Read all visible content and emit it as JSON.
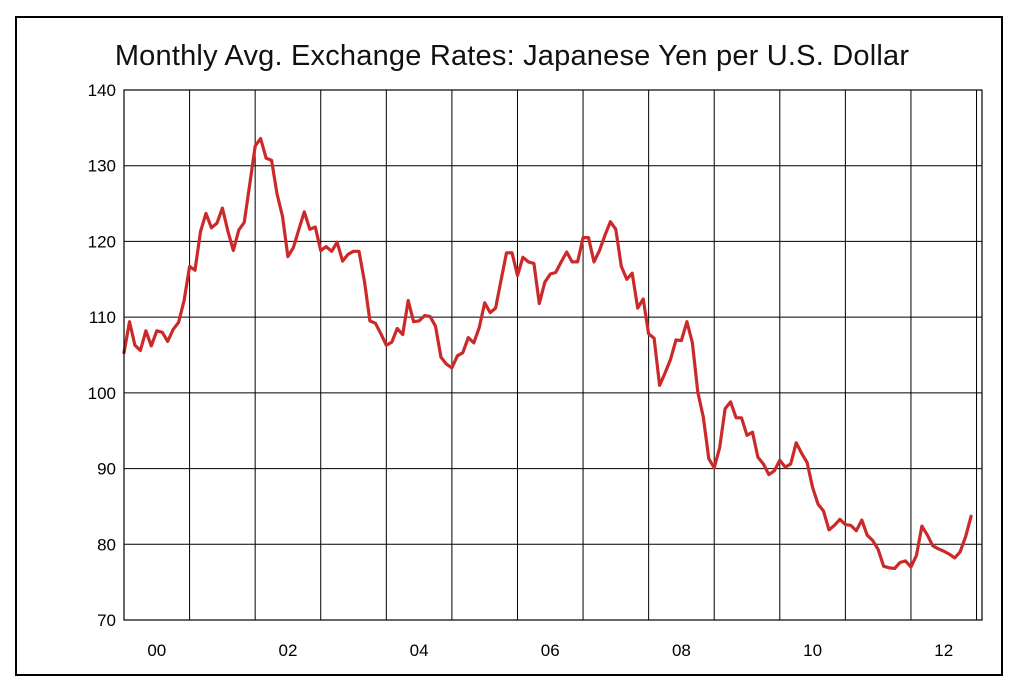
{
  "chart_data": {
    "type": "line",
    "title": "Monthly Avg. Exchange Rates: Japanese Yen per U.S. Dollar",
    "xlabel": "",
    "ylabel": "",
    "ylim": [
      70,
      140
    ],
    "y_ticks": [
      140,
      130,
      120,
      110,
      100,
      90,
      80,
      70
    ],
    "x_tick_labels": [
      "00",
      "02",
      "04",
      "06",
      "08",
      "10",
      "12"
    ],
    "x_tick_years": [
      2000,
      2002,
      2004,
      2006,
      2008,
      2010,
      2012
    ],
    "xlim": [
      "2000-01",
      "2013-02"
    ],
    "grid": true,
    "colors": {
      "line": "#cc2a2a",
      "grid": "#000000"
    },
    "series": [
      {
        "values": [
          [
            "2000-01",
            105.3
          ],
          [
            "2000-02",
            109.4
          ],
          [
            "2000-03",
            106.3
          ],
          [
            "2000-04",
            105.6
          ],
          [
            "2000-05",
            108.2
          ],
          [
            "2000-06",
            106.2
          ],
          [
            "2000-07",
            108.2
          ],
          [
            "2000-08",
            108.0
          ],
          [
            "2000-09",
            106.8
          ],
          [
            "2000-10",
            108.4
          ],
          [
            "2000-11",
            109.3
          ],
          [
            "2000-12",
            112.2
          ],
          [
            "2001-01",
            116.7
          ],
          [
            "2001-02",
            116.2
          ],
          [
            "2001-03",
            121.3
          ],
          [
            "2001-04",
            123.7
          ],
          [
            "2001-05",
            121.8
          ],
          [
            "2001-06",
            122.4
          ],
          [
            "2001-07",
            124.4
          ],
          [
            "2001-08",
            121.4
          ],
          [
            "2001-09",
            118.8
          ],
          [
            "2001-10",
            121.5
          ],
          [
            "2001-11",
            122.5
          ],
          [
            "2001-12",
            127.5
          ],
          [
            "2002-01",
            132.6
          ],
          [
            "2002-02",
            133.6
          ],
          [
            "2002-03",
            131.0
          ],
          [
            "2002-04",
            130.7
          ],
          [
            "2002-05",
            126.3
          ],
          [
            "2002-06",
            123.3
          ],
          [
            "2002-07",
            118.0
          ],
          [
            "2002-08",
            119.2
          ],
          [
            "2002-09",
            121.6
          ],
          [
            "2002-10",
            123.9
          ],
          [
            "2002-11",
            121.6
          ],
          [
            "2002-12",
            121.9
          ],
          [
            "2003-01",
            118.8
          ],
          [
            "2003-02",
            119.3
          ],
          [
            "2003-03",
            118.7
          ],
          [
            "2003-04",
            119.9
          ],
          [
            "2003-05",
            117.4
          ],
          [
            "2003-06",
            118.3
          ],
          [
            "2003-07",
            118.7
          ],
          [
            "2003-08",
            118.7
          ],
          [
            "2003-09",
            114.7
          ],
          [
            "2003-10",
            109.5
          ],
          [
            "2003-11",
            109.2
          ],
          [
            "2003-12",
            107.8
          ],
          [
            "2004-01",
            106.3
          ],
          [
            "2004-02",
            106.7
          ],
          [
            "2004-03",
            108.5
          ],
          [
            "2004-04",
            107.7
          ],
          [
            "2004-05",
            112.2
          ],
          [
            "2004-06",
            109.4
          ],
          [
            "2004-07",
            109.5
          ],
          [
            "2004-08",
            110.2
          ],
          [
            "2004-09",
            110.1
          ],
          [
            "2004-10",
            108.8
          ],
          [
            "2004-11",
            104.7
          ],
          [
            "2004-12",
            103.8
          ],
          [
            "2005-01",
            103.3
          ],
          [
            "2005-02",
            104.9
          ],
          [
            "2005-03",
            105.3
          ],
          [
            "2005-04",
            107.3
          ],
          [
            "2005-05",
            106.6
          ],
          [
            "2005-06",
            108.6
          ],
          [
            "2005-07",
            111.9
          ],
          [
            "2005-08",
            110.6
          ],
          [
            "2005-09",
            111.2
          ],
          [
            "2005-10",
            114.9
          ],
          [
            "2005-11",
            118.5
          ],
          [
            "2005-12",
            118.5
          ],
          [
            "2006-01",
            115.5
          ],
          [
            "2006-02",
            117.9
          ],
          [
            "2006-03",
            117.3
          ],
          [
            "2006-04",
            117.1
          ],
          [
            "2006-05",
            111.8
          ],
          [
            "2006-06",
            114.6
          ],
          [
            "2006-07",
            115.7
          ],
          [
            "2006-08",
            115.9
          ],
          [
            "2006-09",
            117.3
          ],
          [
            "2006-10",
            118.6
          ],
          [
            "2006-11",
            117.3
          ],
          [
            "2006-12",
            117.3
          ],
          [
            "2007-01",
            120.5
          ],
          [
            "2007-02",
            120.5
          ],
          [
            "2007-03",
            117.3
          ],
          [
            "2007-04",
            118.8
          ],
          [
            "2007-05",
            120.8
          ],
          [
            "2007-06",
            122.6
          ],
          [
            "2007-07",
            121.6
          ],
          [
            "2007-08",
            116.7
          ],
          [
            "2007-09",
            115.0
          ],
          [
            "2007-10",
            115.8
          ],
          [
            "2007-11",
            111.2
          ],
          [
            "2007-12",
            112.4
          ],
          [
            "2008-01",
            107.8
          ],
          [
            "2008-02",
            107.2
          ],
          [
            "2008-03",
            101.0
          ],
          [
            "2008-04",
            102.6
          ],
          [
            "2008-05",
            104.4
          ],
          [
            "2008-06",
            107.0
          ],
          [
            "2008-07",
            106.9
          ],
          [
            "2008-08",
            109.4
          ],
          [
            "2008-09",
            106.6
          ],
          [
            "2008-10",
            100.1
          ],
          [
            "2008-11",
            96.8
          ],
          [
            "2008-12",
            91.3
          ],
          [
            "2009-01",
            90.1
          ],
          [
            "2009-02",
            92.8
          ],
          [
            "2009-03",
            97.9
          ],
          [
            "2009-04",
            98.8
          ],
          [
            "2009-05",
            96.7
          ],
          [
            "2009-06",
            96.7
          ],
          [
            "2009-07",
            94.4
          ],
          [
            "2009-08",
            94.8
          ],
          [
            "2009-09",
            91.5
          ],
          [
            "2009-10",
            90.6
          ],
          [
            "2009-11",
            89.2
          ],
          [
            "2009-12",
            89.7
          ],
          [
            "2010-01",
            91.1
          ],
          [
            "2010-02",
            90.2
          ],
          [
            "2010-03",
            90.6
          ],
          [
            "2010-04",
            93.4
          ],
          [
            "2010-05",
            92.0
          ],
          [
            "2010-06",
            90.8
          ],
          [
            "2010-07",
            87.5
          ],
          [
            "2010-08",
            85.3
          ],
          [
            "2010-09",
            84.4
          ],
          [
            "2010-10",
            81.9
          ],
          [
            "2010-11",
            82.5
          ],
          [
            "2010-12",
            83.3
          ],
          [
            "2011-01",
            82.6
          ],
          [
            "2011-02",
            82.5
          ],
          [
            "2011-03",
            81.8
          ],
          [
            "2011-04",
            83.2
          ],
          [
            "2011-05",
            81.2
          ],
          [
            "2011-06",
            80.5
          ],
          [
            "2011-07",
            79.3
          ],
          [
            "2011-08",
            77.1
          ],
          [
            "2011-09",
            76.9
          ],
          [
            "2011-10",
            76.8
          ],
          [
            "2011-11",
            77.6
          ],
          [
            "2011-12",
            77.8
          ],
          [
            "2012-01",
            77.0
          ],
          [
            "2012-02",
            78.5
          ],
          [
            "2012-03",
            82.4
          ],
          [
            "2012-04",
            81.2
          ],
          [
            "2012-05",
            79.8
          ],
          [
            "2012-06",
            79.4
          ],
          [
            "2012-07",
            79.1
          ],
          [
            "2012-08",
            78.7
          ],
          [
            "2012-09",
            78.2
          ],
          [
            "2012-10",
            79.0
          ],
          [
            "2012-11",
            81.0
          ],
          [
            "2012-12",
            83.7
          ]
        ]
      }
    ]
  }
}
